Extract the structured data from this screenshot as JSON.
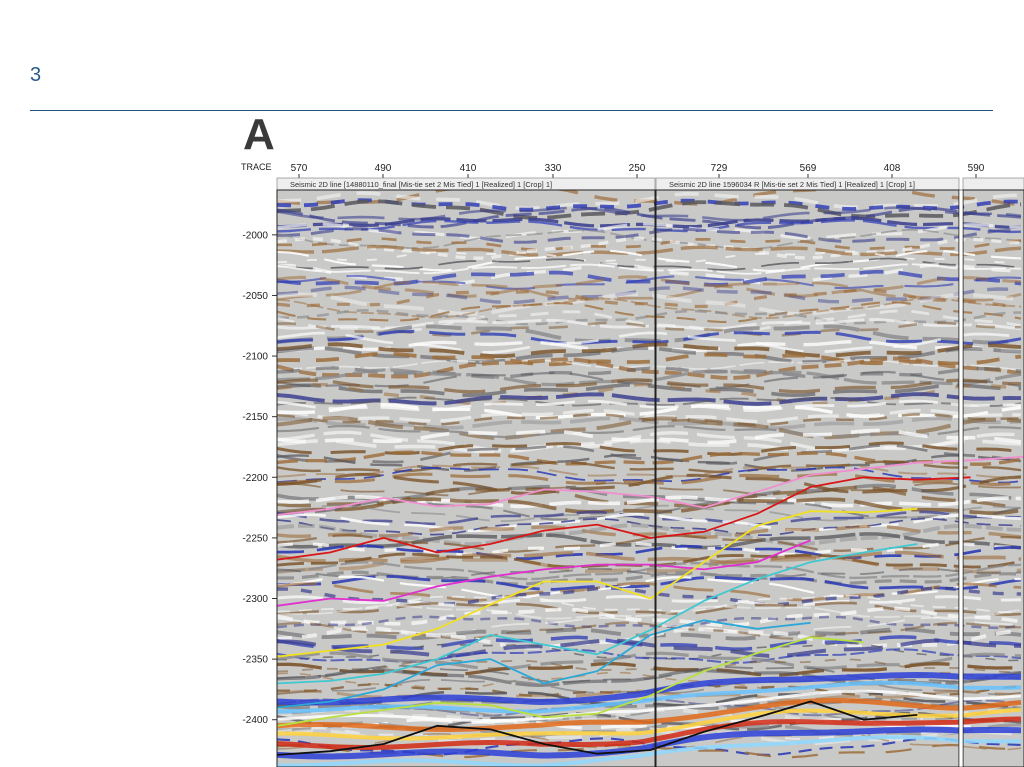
{
  "slide": {
    "number": "3"
  },
  "figure": {
    "panel_letter": "A",
    "trace_label": "TRACE",
    "sections": [
      {
        "header": "Seismic 2D line [14880110_final [Mis-tie set 2 Mis Tied] 1 [Realized] 1 [Crop] 1]"
      },
      {
        "header": "Seismic 2D line 1596034 R [Mis-tie set 2 Mis Tied] 1 [Realized] 1 [Crop] 1]"
      },
      {
        "header": ""
      }
    ]
  },
  "chart_data": {
    "type": "line",
    "title": "",
    "xlabel": "TRACE",
    "ylabel": "",
    "x_tick_labels": [
      "570",
      "490",
      "410",
      "330",
      "250",
      "729",
      "569",
      "408",
      "590"
    ],
    "y_tick_labels": [
      "-2000",
      "-2050",
      "-2100",
      "-2150",
      "-2200",
      "-2250",
      "-2300",
      "-2350",
      "-2400"
    ],
    "ylim": [
      -2439,
      -1963
    ],
    "grid": false,
    "horizons": [
      {
        "color": "#f08fd0",
        "y": [
          -2231,
          -2226,
          -2217,
          -2224,
          -2222,
          -2210,
          -2212,
          -2216,
          -2225,
          -2212,
          -2198,
          -2193,
          -2188,
          -2186,
          -2183
        ]
      },
      {
        "color": "#d81818",
        "y": [
          -2268,
          -2262,
          -2250,
          -2262,
          -2255,
          -2244,
          -2239,
          -2250,
          -2245,
          -2230,
          -2208,
          -2200,
          -2202,
          -2200
        ]
      },
      {
        "color": "#e030d0",
        "y": [
          -2306,
          -2300,
          -2302,
          -2290,
          -2282,
          -2276,
          -2272,
          -2272,
          -2276,
          -2270,
          -2252
        ]
      },
      {
        "color": "#f0e020",
        "y": [
          -2348,
          -2343,
          -2338,
          -2325,
          -2305,
          -2286,
          -2286,
          -2300,
          -2270,
          -2240,
          -2228,
          -2229,
          -2226
        ]
      },
      {
        "color": "#40c8d0",
        "y": [
          -2370,
          -2368,
          -2362,
          -2350,
          -2330,
          -2338,
          -2346,
          -2326,
          -2302,
          -2284,
          -2270,
          -2262,
          -2255
        ]
      },
      {
        "color": "#2aa8d8",
        "y": [
          -2390,
          -2385,
          -2375,
          -2355,
          -2350,
          -2370,
          -2360,
          -2330,
          -2318,
          -2325,
          -2320
        ]
      },
      {
        "color": "#b8e040",
        "y": [
          -2405,
          -2398,
          -2392,
          -2386,
          -2388,
          -2398,
          -2395,
          -2380,
          -2360,
          -2345,
          -2332,
          -2336
        ]
      },
      {
        "color": "#101010",
        "y": [
          -2429,
          -2426,
          -2420,
          -2405,
          -2408,
          -2420,
          -2428,
          -2425,
          -2410,
          -2398,
          -2385,
          -2400,
          -2396
        ]
      }
    ]
  }
}
